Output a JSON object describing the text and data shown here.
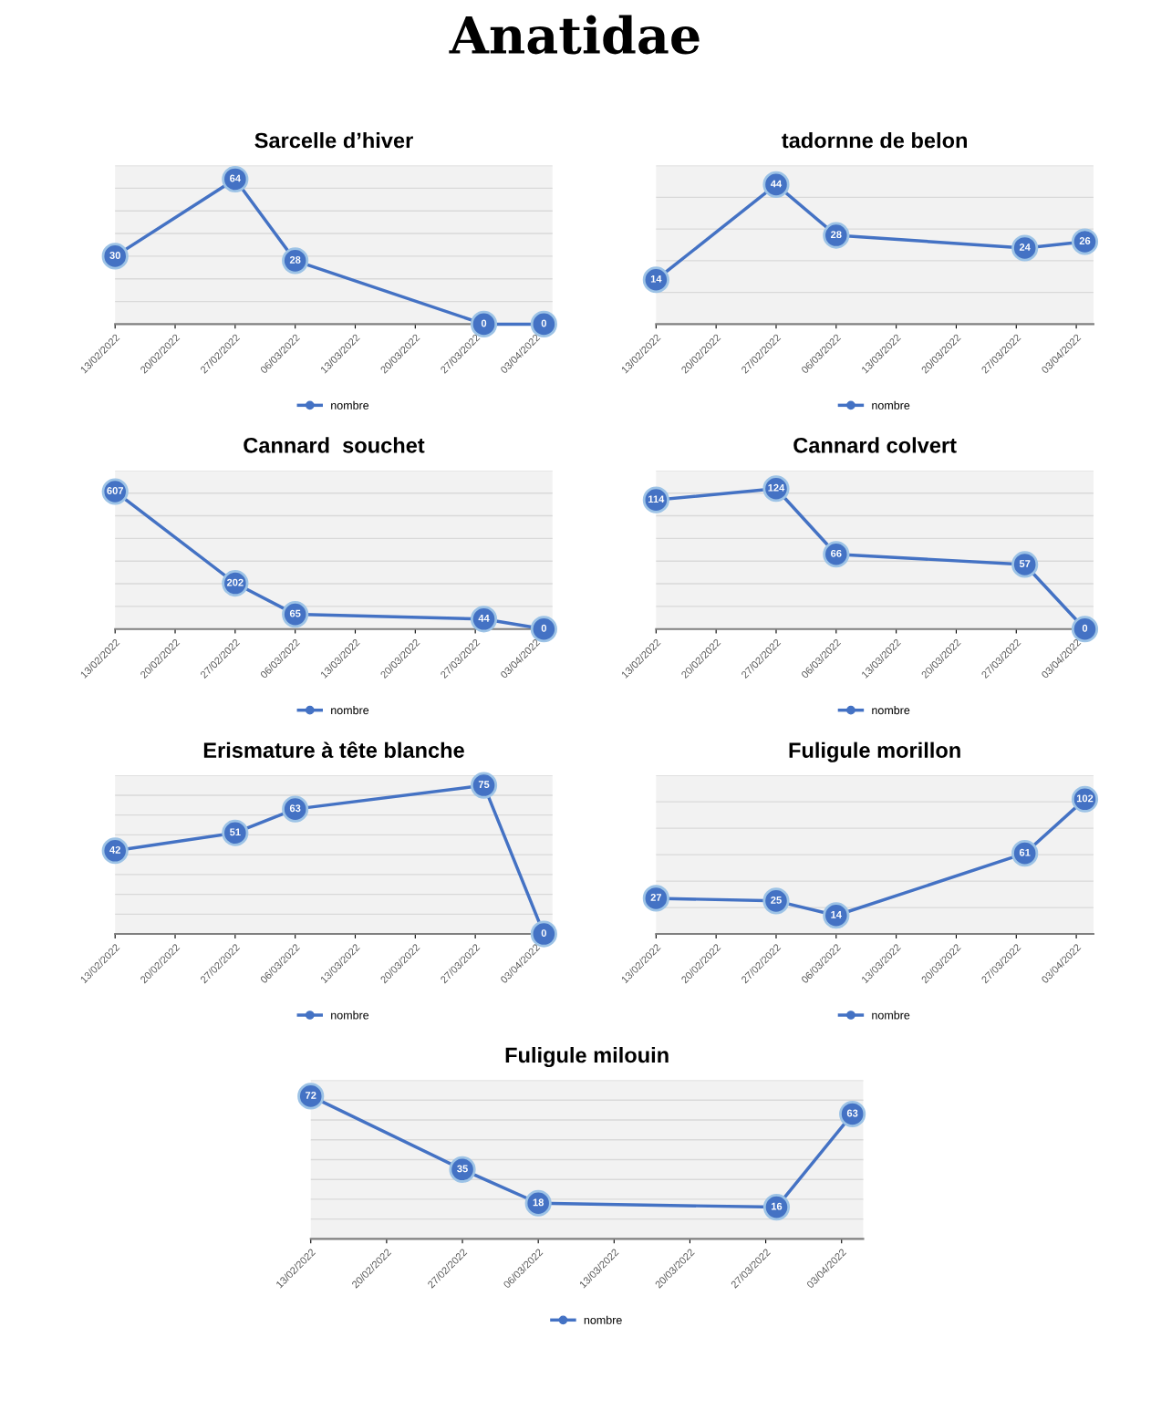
{
  "chart_data": [
    {
      "type": "other",
      "title": "Anatidae"
    },
    {
      "type": "line",
      "title": "Sarcelle d’hiver",
      "x": [
        "2022-02-13",
        "2022-02-27",
        "2022-03-06",
        "2022-03-28",
        "2022-04-04"
      ],
      "series": [
        {
          "name": "nombre",
          "color": "#4472c4",
          "values": [
            30,
            64,
            28,
            0,
            0
          ]
        }
      ],
      "ylim": [
        0,
        70
      ],
      "yticks": [
        {
          "value": 10,
          "label": null
        },
        {
          "value": 20,
          "label": null
        },
        {
          "value": 30,
          "label": null
        },
        {
          "value": 40,
          "label": null
        },
        {
          "value": 50,
          "label": null
        },
        {
          "value": 60,
          "label": null
        },
        {
          "value": 70,
          "label": null
        }
      ],
      "xlim": [
        "2022-02-13",
        "2022-04-05"
      ],
      "xticks": [
        {
          "value": "2022-02-13",
          "label": "13/02/2022"
        },
        {
          "value": "2022-02-20",
          "label": "20/02/2022"
        },
        {
          "value": "2022-02-27",
          "label": "27/02/2022"
        },
        {
          "value": "2022-03-06",
          "label": "06/03/2022"
        },
        {
          "value": "2022-03-13",
          "label": "13/03/2022"
        },
        {
          "value": "2022-03-20",
          "label": "20/03/2022"
        },
        {
          "value": "2022-03-27",
          "label": "27/03/2022"
        },
        {
          "value": "2022-04-03",
          "label": "03/04/2022"
        }
      ],
      "data_labels": true,
      "marker": "circle",
      "grid": "y",
      "legend": "bottom",
      "tick_labels": "x"
    },
    {
      "type": "line",
      "title": "tadornne de belon",
      "x": [
        "2022-02-13",
        "2022-02-27",
        "2022-03-06",
        "2022-03-28",
        "2022-04-04"
      ],
      "series": [
        {
          "name": "nombre",
          "color": "#4472c4",
          "values": [
            14,
            44,
            28,
            24,
            26
          ]
        }
      ],
      "ylim": [
        0,
        50
      ],
      "yticks": [
        {
          "value": 10,
          "label": null
        },
        {
          "value": 20,
          "label": null
        },
        {
          "value": 30,
          "label": null
        },
        {
          "value": 40,
          "label": null
        },
        {
          "value": 50,
          "label": null
        }
      ],
      "xlim": [
        "2022-02-13",
        "2022-04-05"
      ],
      "xticks": [
        {
          "value": "2022-02-13",
          "label": "13/02/2022"
        },
        {
          "value": "2022-02-20",
          "label": "20/02/2022"
        },
        {
          "value": "2022-02-27",
          "label": "27/02/2022"
        },
        {
          "value": "2022-03-06",
          "label": "06/03/2022"
        },
        {
          "value": "2022-03-13",
          "label": "13/03/2022"
        },
        {
          "value": "2022-03-20",
          "label": "20/03/2022"
        },
        {
          "value": "2022-03-27",
          "label": "27/03/2022"
        },
        {
          "value": "2022-04-03",
          "label": "03/04/2022"
        }
      ],
      "data_labels": true,
      "marker": "circle",
      "grid": "y",
      "legend": "bottom",
      "tick_labels": "x"
    },
    {
      "type": "line",
      "title": "Cannard  souchet",
      "x": [
        "2022-02-13",
        "2022-02-27",
        "2022-03-06",
        "2022-03-28",
        "2022-04-04"
      ],
      "series": [
        {
          "name": "nombre",
          "color": "#4472c4",
          "values": [
            607,
            202,
            65,
            44,
            0
          ]
        }
      ],
      "ylim": [
        0,
        700
      ],
      "yticks": [
        {
          "value": 100,
          "label": null
        },
        {
          "value": 200,
          "label": null
        },
        {
          "value": 300,
          "label": null
        },
        {
          "value": 400,
          "label": null
        },
        {
          "value": 500,
          "label": null
        },
        {
          "value": 600,
          "label": null
        },
        {
          "value": 700,
          "label": null
        }
      ],
      "xlim": [
        "2022-02-13",
        "2022-04-05"
      ],
      "xticks": [
        {
          "value": "2022-02-13",
          "label": "13/02/2022"
        },
        {
          "value": "2022-02-20",
          "label": "20/02/2022"
        },
        {
          "value": "2022-02-27",
          "label": "27/02/2022"
        },
        {
          "value": "2022-03-06",
          "label": "06/03/2022"
        },
        {
          "value": "2022-03-13",
          "label": "13/03/2022"
        },
        {
          "value": "2022-03-20",
          "label": "20/03/2022"
        },
        {
          "value": "2022-03-27",
          "label": "27/03/2022"
        },
        {
          "value": "2022-04-03",
          "label": "03/04/2022"
        }
      ],
      "data_labels": true,
      "marker": "circle",
      "grid": "y",
      "legend": "bottom",
      "tick_labels": "x"
    },
    {
      "type": "line",
      "title": "Cannard colvert",
      "x": [
        "2022-02-13",
        "2022-02-27",
        "2022-03-06",
        "2022-03-28",
        "2022-04-04"
      ],
      "series": [
        {
          "name": "nombre",
          "color": "#4472c4",
          "values": [
            114,
            124,
            66,
            57,
            0
          ]
        }
      ],
      "ylim": [
        0,
        140
      ],
      "yticks": [
        {
          "value": 20,
          "label": null
        },
        {
          "value": 40,
          "label": null
        },
        {
          "value": 60,
          "label": null
        },
        {
          "value": 80,
          "label": null
        },
        {
          "value": 100,
          "label": null
        },
        {
          "value": 120,
          "label": null
        },
        {
          "value": 140,
          "label": null
        }
      ],
      "xlim": [
        "2022-02-13",
        "2022-04-05"
      ],
      "xticks": [
        {
          "value": "2022-02-13",
          "label": "13/02/2022"
        },
        {
          "value": "2022-02-20",
          "label": "20/02/2022"
        },
        {
          "value": "2022-02-27",
          "label": "27/02/2022"
        },
        {
          "value": "2022-03-06",
          "label": "06/03/2022"
        },
        {
          "value": "2022-03-13",
          "label": "13/03/2022"
        },
        {
          "value": "2022-03-20",
          "label": "20/03/2022"
        },
        {
          "value": "2022-03-27",
          "label": "27/03/2022"
        },
        {
          "value": "2022-04-03",
          "label": "03/04/2022"
        }
      ],
      "data_labels": true,
      "marker": "circle",
      "grid": "y",
      "legend": "bottom",
      "tick_labels": "x"
    },
    {
      "type": "line",
      "title": "Erismature à tête blanche",
      "x": [
        "2022-02-13",
        "2022-02-27",
        "2022-03-06",
        "2022-03-28",
        "2022-04-04"
      ],
      "series": [
        {
          "name": "nombre",
          "color": "#4472c4",
          "values": [
            42,
            51,
            63,
            75,
            0
          ]
        }
      ],
      "ylim": [
        0,
        80
      ],
      "yticks": [
        {
          "value": 10,
          "label": null
        },
        {
          "value": 20,
          "label": null
        },
        {
          "value": 30,
          "label": null
        },
        {
          "value": 40,
          "label": null
        },
        {
          "value": 50,
          "label": null
        },
        {
          "value": 60,
          "label": null
        },
        {
          "value": 70,
          "label": null
        },
        {
          "value": 80,
          "label": null
        }
      ],
      "xlim": [
        "2022-02-13",
        "2022-04-05"
      ],
      "xticks": [
        {
          "value": "2022-02-13",
          "label": "13/02/2022"
        },
        {
          "value": "2022-02-20",
          "label": "20/02/2022"
        },
        {
          "value": "2022-02-27",
          "label": "27/02/2022"
        },
        {
          "value": "2022-03-06",
          "label": "06/03/2022"
        },
        {
          "value": "2022-03-13",
          "label": "13/03/2022"
        },
        {
          "value": "2022-03-20",
          "label": "20/03/2022"
        },
        {
          "value": "2022-03-27",
          "label": "27/03/2022"
        },
        {
          "value": "2022-04-03",
          "label": "03/04/2022"
        }
      ],
      "data_labels": true,
      "marker": "circle",
      "grid": "y",
      "legend": "bottom",
      "tick_labels": "x"
    },
    {
      "type": "line",
      "title": "Fuligule morillon",
      "x": [
        "2022-02-13",
        "2022-02-27",
        "2022-03-06",
        "2022-03-28",
        "2022-04-04"
      ],
      "series": [
        {
          "name": "nombre",
          "color": "#4472c4",
          "values": [
            27,
            25,
            14,
            61,
            102
          ]
        }
      ],
      "ylim": [
        0,
        120
      ],
      "yticks": [
        {
          "value": 20,
          "label": null
        },
        {
          "value": 40,
          "label": null
        },
        {
          "value": 60,
          "label": null
        },
        {
          "value": 80,
          "label": null
        },
        {
          "value": 100,
          "label": null
        },
        {
          "value": 120,
          "label": null
        }
      ],
      "xlim": [
        "2022-02-13",
        "2022-04-05"
      ],
      "xticks": [
        {
          "value": "2022-02-13",
          "label": "13/02/2022"
        },
        {
          "value": "2022-02-20",
          "label": "20/02/2022"
        },
        {
          "value": "2022-02-27",
          "label": "27/02/2022"
        },
        {
          "value": "2022-03-06",
          "label": "06/03/2022"
        },
        {
          "value": "2022-03-13",
          "label": "13/03/2022"
        },
        {
          "value": "2022-03-20",
          "label": "20/03/2022"
        },
        {
          "value": "2022-03-27",
          "label": "27/03/2022"
        },
        {
          "value": "2022-04-03",
          "label": "03/04/2022"
        }
      ],
      "data_labels": true,
      "marker": "circle",
      "grid": "y",
      "legend": "bottom",
      "tick_labels": "x"
    },
    {
      "type": "line",
      "title": "Fuligule milouin",
      "x": [
        "2022-02-13",
        "2022-02-27",
        "2022-03-06",
        "2022-03-28",
        "2022-04-04"
      ],
      "series": [
        {
          "name": "nombre",
          "color": "#4472c4",
          "values": [
            72,
            35,
            18,
            16,
            63
          ]
        }
      ],
      "ylim": [
        0,
        80
      ],
      "yticks": [
        {
          "value": 10,
          "label": null
        },
        {
          "value": 20,
          "label": null
        },
        {
          "value": 30,
          "label": null
        },
        {
          "value": 40,
          "label": null
        },
        {
          "value": 50,
          "label": null
        },
        {
          "value": 60,
          "label": null
        },
        {
          "value": 70,
          "label": null
        },
        {
          "value": 80,
          "label": null
        }
      ],
      "xlim": [
        "2022-02-13",
        "2022-04-05"
      ],
      "xticks": [
        {
          "value": "2022-02-13",
          "label": "13/02/2022"
        },
        {
          "value": "2022-02-20",
          "label": "20/02/2022"
        },
        {
          "value": "2022-02-27",
          "label": "27/02/2022"
        },
        {
          "value": "2022-03-06",
          "label": "06/03/2022"
        },
        {
          "value": "2022-03-13",
          "label": "13/03/2022"
        },
        {
          "value": "2022-03-20",
          "label": "20/03/2022"
        },
        {
          "value": "2022-03-27",
          "label": "27/03/2022"
        },
        {
          "value": "2022-04-03",
          "label": "03/04/2022"
        }
      ],
      "data_labels": true,
      "marker": "circle",
      "grid": "y",
      "legend": "bottom",
      "tick_labels": "x"
    }
  ]
}
